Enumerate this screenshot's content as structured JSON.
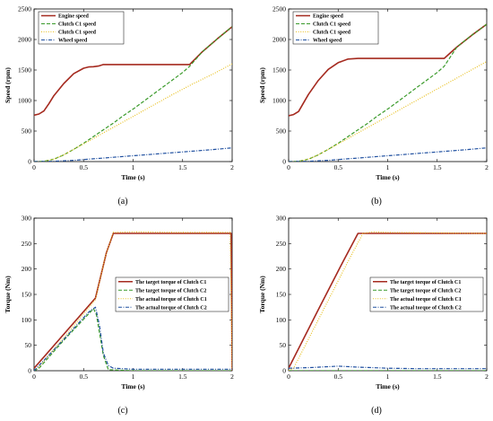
{
  "chart_data": [
    {
      "id": "a",
      "type": "line",
      "caption": "(a)",
      "xlabel": "Time (s)",
      "ylabel": "Speed (rpm)",
      "xlim": [
        0,
        2
      ],
      "ylim": [
        0,
        2500
      ],
      "xticks": [
        0,
        0.5,
        1,
        1.5,
        2
      ],
      "yticks": [
        0,
        500,
        1000,
        1500,
        2000,
        2500
      ],
      "legend_position": "top-left",
      "grid": false,
      "series": [
        {
          "name": "Engine speed",
          "color": "#a52a1f",
          "style": "solid",
          "x": [
            0,
            0.05,
            0.1,
            0.15,
            0.2,
            0.3,
            0.4,
            0.5,
            0.55,
            0.6,
            0.65,
            0.7,
            0.8,
            1.0,
            1.2,
            1.4,
            1.57,
            1.7,
            1.85,
            2.0
          ],
          "y": [
            760,
            780,
            830,
            950,
            1080,
            1280,
            1440,
            1530,
            1550,
            1555,
            1565,
            1590,
            1590,
            1590,
            1590,
            1590,
            1590,
            1800,
            2010,
            2210
          ]
        },
        {
          "name": "Clutch C1 speed",
          "color": "#3a9a2a",
          "style": "dash",
          "x": [
            0,
            0.1,
            0.2,
            0.3,
            0.4,
            0.5,
            0.6,
            0.7,
            0.8,
            0.9,
            1.0,
            1.1,
            1.2,
            1.3,
            1.4,
            1.5,
            1.57,
            1.7,
            1.85,
            2.0
          ],
          "y": [
            0,
            5,
            40,
            110,
            200,
            300,
            410,
            520,
            630,
            750,
            860,
            980,
            1100,
            1220,
            1340,
            1460,
            1560,
            1800,
            2010,
            2210
          ]
        },
        {
          "name": "Clutch C1 speed",
          "color": "#e8c020",
          "style": "dot",
          "x": [
            0,
            0.1,
            0.2,
            0.3,
            0.4,
            0.5,
            0.6,
            0.7,
            0.8,
            1.0,
            1.2,
            1.4,
            1.6,
            1.8,
            2.0
          ],
          "y": [
            0,
            5,
            40,
            110,
            200,
            290,
            380,
            470,
            560,
            740,
            920,
            1100,
            1270,
            1430,
            1600
          ]
        },
        {
          "name": "Wheel speed",
          "color": "#2050a0",
          "style": "dashdot",
          "x": [
            0,
            0.2,
            0.4,
            0.6,
            0.8,
            1.0,
            1.2,
            1.4,
            1.6,
            1.8,
            2.0
          ],
          "y": [
            0,
            5,
            20,
            45,
            70,
            95,
            120,
            145,
            170,
            195,
            225
          ]
        }
      ]
    },
    {
      "id": "b",
      "type": "line",
      "caption": "(b)",
      "xlabel": "Time (s)",
      "ylabel": "Speed (rpm)",
      "xlim": [
        0,
        2
      ],
      "ylim": [
        0,
        2500
      ],
      "xticks": [
        0,
        0.5,
        1,
        1.5,
        2
      ],
      "yticks": [
        0,
        500,
        1000,
        1500,
        2000,
        2500
      ],
      "legend_position": "top-left",
      "grid": false,
      "series": [
        {
          "name": "Engine speed",
          "color": "#a52a1f",
          "style": "solid",
          "x": [
            0,
            0.05,
            0.1,
            0.15,
            0.2,
            0.3,
            0.4,
            0.5,
            0.6,
            0.7,
            0.8,
            1.0,
            1.2,
            1.4,
            1.57,
            1.7,
            1.85,
            2.0
          ],
          "y": [
            750,
            770,
            820,
            960,
            1100,
            1330,
            1510,
            1620,
            1680,
            1690,
            1690,
            1690,
            1690,
            1690,
            1690,
            1880,
            2070,
            2250
          ]
        },
        {
          "name": "Clutch C1 speed",
          "color": "#3a9a2a",
          "style": "dash",
          "x": [
            0,
            0.1,
            0.2,
            0.3,
            0.4,
            0.5,
            0.6,
            0.7,
            0.8,
            0.9,
            1.0,
            1.1,
            1.2,
            1.3,
            1.4,
            1.5,
            1.57,
            1.7,
            1.85,
            2.0
          ],
          "y": [
            0,
            5,
            40,
            110,
            200,
            300,
            410,
            520,
            630,
            750,
            860,
            980,
            1100,
            1220,
            1340,
            1460,
            1560,
            1880,
            2070,
            2250
          ]
        },
        {
          "name": "Clutch C1 speed",
          "color": "#e8c020",
          "style": "dot",
          "x": [
            0,
            0.1,
            0.2,
            0.3,
            0.4,
            0.5,
            0.6,
            0.7,
            0.8,
            1.0,
            1.2,
            1.4,
            1.6,
            1.8,
            2.0
          ],
          "y": [
            0,
            5,
            40,
            110,
            200,
            290,
            380,
            470,
            560,
            740,
            920,
            1100,
            1280,
            1460,
            1640
          ]
        },
        {
          "name": "Wheel speed",
          "color": "#2050a0",
          "style": "dashdot",
          "x": [
            0,
            0.2,
            0.4,
            0.6,
            0.8,
            1.0,
            1.2,
            1.4,
            1.6,
            1.8,
            2.0
          ],
          "y": [
            0,
            5,
            20,
            45,
            70,
            95,
            120,
            145,
            170,
            195,
            225
          ]
        }
      ]
    },
    {
      "id": "c",
      "type": "line",
      "caption": "(c)",
      "xlabel": "Time (s)",
      "ylabel": "Torque (Nm)",
      "xlim": [
        0,
        2
      ],
      "ylim": [
        0,
        300
      ],
      "xticks": [
        0,
        0.5,
        1,
        1.5,
        2
      ],
      "yticks": [
        0,
        50,
        100,
        150,
        200,
        250,
        300
      ],
      "legend_position": "center-right",
      "grid": false,
      "series": [
        {
          "name": "The target torque of Clutch C1",
          "color": "#a52a1f",
          "style": "solid",
          "x": [
            0,
            0.62,
            0.73,
            0.8,
            1.0,
            1.5,
            1.99,
            2.0
          ],
          "y": [
            5,
            143,
            232,
            270,
            270,
            270,
            270,
            0
          ]
        },
        {
          "name": "The target torque of Clutch C2",
          "color": "#3a9a2a",
          "style": "dash",
          "x": [
            0,
            0.05,
            0.3,
            0.6,
            0.63,
            0.7,
            0.75,
            1.0,
            2.0
          ],
          "y": [
            0,
            5,
            60,
            122,
            110,
            30,
            2,
            0,
            0
          ]
        },
        {
          "name": "The actual torque of Clutch C1",
          "color": "#e8c020",
          "style": "dot",
          "x": [
            0,
            0.05,
            0.3,
            0.62,
            0.72,
            0.8,
            1.0,
            1.5,
            1.98,
            2.0
          ],
          "y": [
            0,
            8,
            65,
            140,
            225,
            272,
            273,
            272,
            272,
            5
          ]
        },
        {
          "name": "The actual torque of Clutch C2",
          "color": "#2050a0",
          "style": "dashdot",
          "x": [
            0,
            0.05,
            0.3,
            0.55,
            0.62,
            0.66,
            0.7,
            0.75,
            0.8,
            1.0,
            2.0
          ],
          "y": [
            0,
            10,
            62,
            115,
            125,
            90,
            35,
            10,
            5,
            3,
            3
          ]
        }
      ]
    },
    {
      "id": "d",
      "type": "line",
      "caption": "(d)",
      "xlabel": "Time (s)",
      "ylabel": "Torque (Nm)",
      "xlim": [
        0,
        2
      ],
      "ylim": [
        0,
        300
      ],
      "xticks": [
        0,
        0.5,
        1,
        1.5,
        2
      ],
      "yticks": [
        0,
        50,
        100,
        150,
        200,
        250,
        300
      ],
      "legend_position": "center-right",
      "grid": false,
      "series": [
        {
          "name": "The target torque of Clutch C1",
          "color": "#a52a1f",
          "style": "solid",
          "x": [
            0,
            0.3,
            0.55,
            0.7,
            1.0,
            1.5,
            2.0
          ],
          "y": [
            5,
            120,
            215,
            270,
            270,
            270,
            270
          ]
        },
        {
          "name": "The target torque of Clutch C2",
          "color": "#3a9a2a",
          "style": "dash",
          "x": [
            0,
            0.5,
            1.0,
            2.0
          ],
          "y": [
            0,
            0,
            0,
            0
          ]
        },
        {
          "name": "The actual torque of Clutch C1",
          "color": "#e8c020",
          "style": "dot",
          "x": [
            0,
            0.05,
            0.3,
            0.6,
            0.75,
            0.85,
            1.0,
            1.5,
            2.0
          ],
          "y": [
            0,
            5,
            100,
            215,
            270,
            273,
            272,
            271,
            270
          ]
        },
        {
          "name": "The actual torque of Clutch C2",
          "color": "#2050a0",
          "style": "dashdot",
          "x": [
            0,
            0.2,
            0.4,
            0.5,
            0.7,
            1.0,
            1.3,
            1.6,
            2.0
          ],
          "y": [
            5,
            6,
            8,
            9,
            7,
            5,
            4,
            4,
            4
          ]
        }
      ]
    }
  ]
}
